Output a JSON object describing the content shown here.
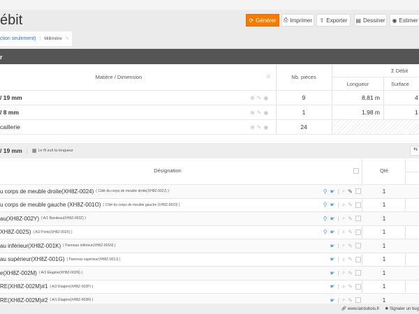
{
  "header": {
    "title": "ébit",
    "buttons": [
      {
        "label": "Générer",
        "icon": "refresh-icon"
      },
      {
        "label": "Imprimer",
        "icon": "print-icon"
      },
      {
        "label": "Exporter",
        "icon": "export-icon"
      },
      {
        "label": "Dessiner",
        "icon": "draw-icon"
      },
      {
        "label": "Estimer",
        "icon": "estimate-icon"
      }
    ]
  },
  "tab": {
    "label": "ction seulement)",
    "unit": "Millimètre"
  },
  "darkbar": {
    "label": "r"
  },
  "summary": {
    "headers": {
      "material": "Matière / Dimension",
      "count": "Nb. pièces",
      "debit": "Σ Débit",
      "length": "Longueur",
      "surface": "Surface"
    },
    "rows": [
      {
        "name": "/ 19 mm",
        "bold": true,
        "count": "9",
        "length": "8,81 m",
        "surface": "4"
      },
      {
        "name": "/ 8 mm",
        "bold": true,
        "count": "1",
        "length": "1,98 m",
        "surface": "1"
      },
      {
        "name": "caillerie",
        "bold": false,
        "count": "24",
        "length": "",
        "surface": ""
      }
    ]
  },
  "section": {
    "title": "/ 19 mm",
    "grain": "Le fil suit la longueur"
  },
  "parts": {
    "headers": {
      "designation": "Désignation",
      "qty": "Qté"
    },
    "rows": [
      {
        "name": "u corps de meuble droite(XH8Z-0024)",
        "sub": "( Côté du corps de meuble droite(XH8Z-002J) )",
        "qty": "1",
        "link": true
      },
      {
        "name": "u corps de meuble gauche (XH8Z-001O)",
        "sub": "( Côté du corps de meuble gauche (XH8Z-0023) )",
        "qty": "1",
        "link": true
      },
      {
        "name": "au(XH8Z-002Y)",
        "sub": "( A/1 Bandeau(XH8Z-002Z) )",
        "qty": "1",
        "link": true
      },
      {
        "name": "XH8Z-002S)",
        "sub": "( A/2 Porte(XH8Z-002X) )",
        "qty": "1",
        "link": true
      },
      {
        "name": "au inférieur(XH8Z-001K)",
        "sub": "( Panneau inférieur(XH8Z-001N) )",
        "qty": "1",
        "link": false
      },
      {
        "name": "au supérieur(XH8Z-001G)",
        "sub": "( Panneau supérieur(XH8Z-001J) )",
        "qty": "1",
        "link": false
      },
      {
        "name": "e(XH8Z-002M)",
        "sub": "( A/3 Étagère(XH8Z-002N) )",
        "qty": "1",
        "link": false
      },
      {
        "name": "RE(XH8Z-002M)#1",
        "sub": "( A/2 Étagère(XH8Z-002P) )",
        "qty": "1",
        "link": false
      },
      {
        "name": "RE(XH8Z-002M)#2",
        "sub": "( A/1 Étagère(XH8Z-002R) )",
        "qty": "1",
        "link": false
      }
    ]
  },
  "footer": {
    "site": "www.lairdubois.fr",
    "bug": "Signaler un bug"
  },
  "colors": {
    "primary": "#f57c00",
    "darkbar": "#555555",
    "link": "#2a6ed9"
  }
}
